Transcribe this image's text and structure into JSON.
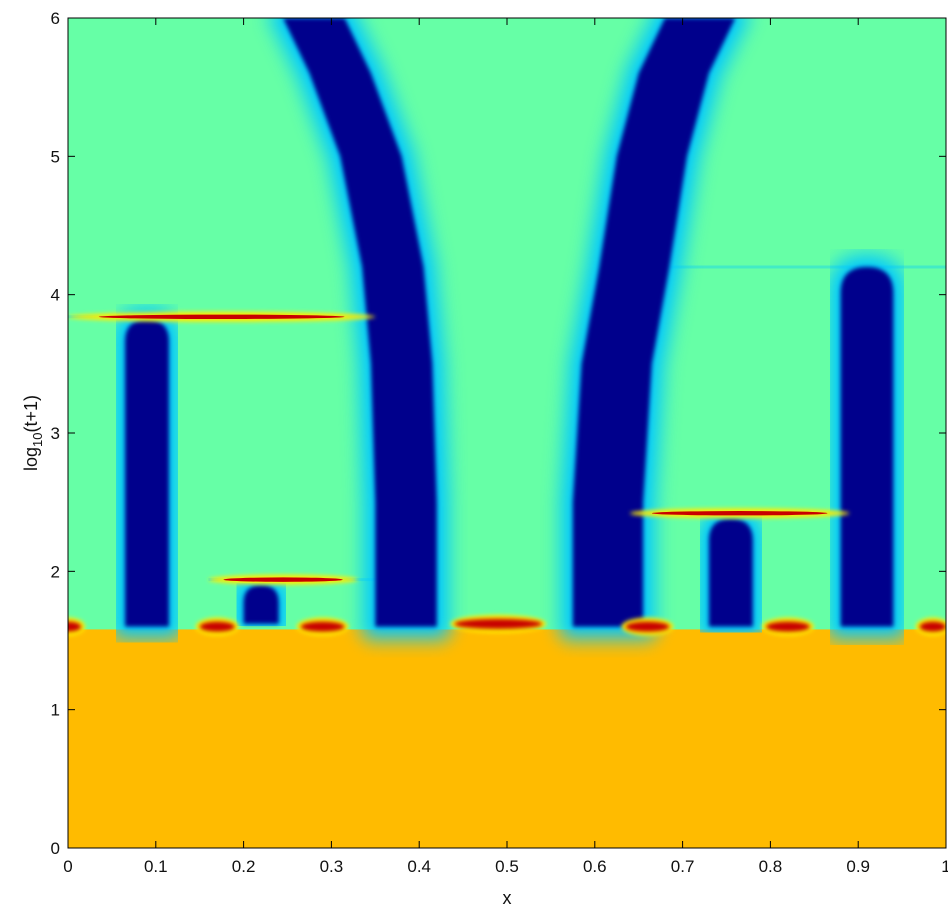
{
  "chart_data": {
    "type": "heatmap",
    "title": "",
    "xlabel": "x",
    "ylabel": {
      "prefix": "log",
      "subscript": "10",
      "suffix": "(t+1)"
    },
    "xlim": [
      0,
      1
    ],
    "ylim": [
      0,
      6
    ],
    "x_ticks": [
      0,
      0.1,
      0.2,
      0.3,
      0.4,
      0.5,
      0.6,
      0.7,
      0.8,
      0.9,
      1
    ],
    "x_tick_labels": [
      "0",
      "0.1",
      "0.2",
      "0.3",
      "0.4",
      "0.5",
      "0.6",
      "0.7",
      "0.8",
      "0.9",
      "1"
    ],
    "y_ticks": [
      0,
      1,
      2,
      3,
      4,
      5,
      6
    ],
    "y_tick_labels": [
      "0",
      "1",
      "2",
      "3",
      "4",
      "5",
      "6"
    ],
    "grid": false,
    "colormap": "jet",
    "colors": {
      "background_state": "#66ffa6",
      "initial_state": "#ffbb00",
      "band_core": "#00008c",
      "band_edge": "#00c8ff",
      "spike": "#c80000",
      "spike_edge": "#ffee00"
    },
    "initial_state_region": {
      "y_range": [
        0,
        1.58
      ]
    },
    "interface": {
      "y": 1.58,
      "red_spots": [
        {
          "x": 0.0,
          "y": 1.6,
          "width": 0.03
        },
        {
          "x": 0.17,
          "y": 1.6,
          "width": 0.04
        },
        {
          "x": 0.29,
          "y": 1.6,
          "width": 0.05
        },
        {
          "x": 0.49,
          "y": 1.62,
          "width": 0.1
        },
        {
          "x": 0.66,
          "y": 1.6,
          "width": 0.05
        },
        {
          "x": 0.82,
          "y": 1.6,
          "width": 0.05
        },
        {
          "x": 0.985,
          "y": 1.6,
          "width": 0.03
        }
      ]
    },
    "bands": [
      {
        "x_center": 0.09,
        "width": 0.05,
        "y_start": 1.6,
        "y_end": 3.82
      },
      {
        "x_center": 0.22,
        "width": 0.04,
        "y_start": 1.62,
        "y_end": 1.9
      },
      {
        "x_center": 0.755,
        "width": 0.05,
        "y_start": 1.6,
        "y_end": 2.38
      },
      {
        "x_center": 0.91,
        "width": 0.06,
        "y_start": 1.6,
        "y_end": 4.2
      },
      {
        "path": [
          [
            0.385,
            1.6
          ],
          [
            0.385,
            2.5
          ],
          [
            0.38,
            3.5
          ],
          [
            0.37,
            4.2
          ],
          [
            0.345,
            5.0
          ],
          [
            0.31,
            5.6
          ],
          [
            0.28,
            6.0
          ]
        ],
        "width": 0.07
      },
      {
        "path": [
          [
            0.615,
            1.6
          ],
          [
            0.615,
            2.5
          ],
          [
            0.625,
            3.5
          ],
          [
            0.645,
            4.2
          ],
          [
            0.665,
            5.0
          ],
          [
            0.69,
            5.6
          ],
          [
            0.72,
            6.0
          ]
        ],
        "width": 0.08
      }
    ],
    "spikes": [
      {
        "x_start": 0.0,
        "x_end": 0.35,
        "y": 3.84
      },
      {
        "x_start": 0.16,
        "x_end": 0.33,
        "y": 1.94
      },
      {
        "x_start": 0.64,
        "x_end": 0.89,
        "y": 2.42
      }
    ],
    "region_edges": [
      {
        "x_start": 0.0,
        "x_end": 0.35,
        "y": 3.84
      },
      {
        "x_start": 0.16,
        "x_end": 0.35,
        "y": 1.94
      },
      {
        "x_start": 0.64,
        "x_end": 1.0,
        "y": 4.2
      },
      {
        "x_start": 0.62,
        "x_end": 0.89,
        "y": 2.42
      }
    ]
  }
}
